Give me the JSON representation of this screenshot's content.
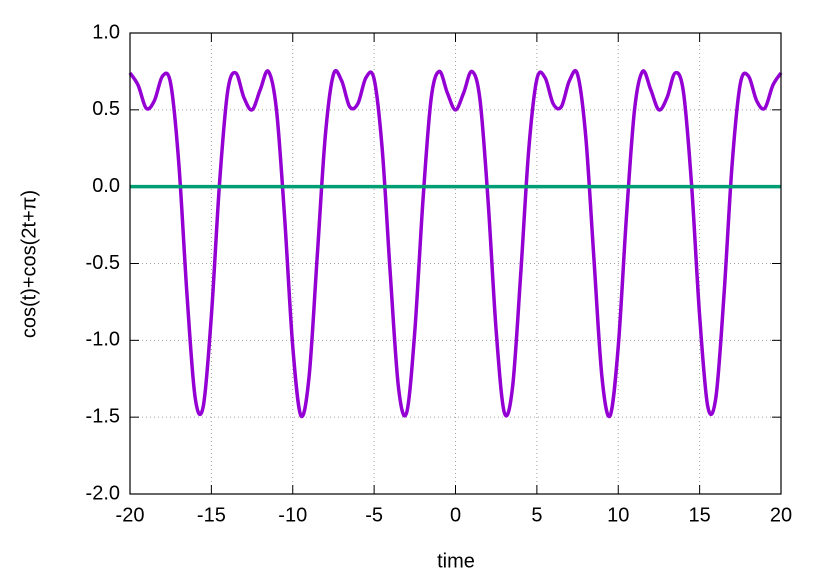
{
  "chart_data": {
    "type": "line",
    "xlabel": "time",
    "ylabel": "cos(t)+cos(2t+π)",
    "xlim": [
      -20,
      20
    ],
    "xticks": [
      -20,
      -15,
      -10,
      -5,
      0,
      5,
      10,
      15,
      20
    ],
    "ylim": [
      -2,
      1
    ],
    "yticks": [
      {
        "value": -2,
        "label": "-2.0"
      },
      {
        "value": -1.5,
        "label": "-1.5"
      },
      {
        "value": -1,
        "label": "-1.0"
      },
      {
        "value": -0.5,
        "label": "-0.5"
      },
      {
        "value": 0,
        "label": "0.0"
      },
      {
        "value": 0.5,
        "label": "0.5"
      },
      {
        "value": 1,
        "label": "1.0"
      }
    ],
    "grid": true,
    "series": [
      {
        "color": "#9400d3",
        "x": [
          -20,
          -19.5,
          -19,
          -18.5,
          -18,
          -17.5,
          -17,
          -16.5,
          -16,
          -15.5,
          -15,
          -14.5,
          -14,
          -13.5,
          -13,
          -12.5,
          -12,
          -11.5,
          -11,
          -10.5,
          -10,
          -9.5,
          -9,
          -8.5,
          -8,
          -7.5,
          -7,
          -6.5,
          -6,
          -5.5,
          -5,
          -4.5,
          -4,
          -3.5,
          -3,
          -2.5,
          -2,
          -1.5,
          -1,
          -0.5,
          0,
          0.5,
          1,
          1.5,
          2,
          2.5,
          3,
          3.5,
          4,
          4.5,
          5,
          5.5,
          6,
          6.5,
          7,
          7.5,
          8,
          8.5,
          9,
          9.5,
          10,
          10.5,
          11,
          11.5,
          12,
          12.5,
          13,
          13.5,
          14,
          14.5,
          15,
          15.5,
          16,
          16.5,
          17,
          17.5,
          18,
          18.5,
          19,
          19.5,
          20
        ],
        "values": [
          0.74,
          0.66,
          0.51,
          0.56,
          0.72,
          0.67,
          0.15,
          -0.7,
          -1.37,
          -1.43,
          -0.84,
          0.02,
          0.62,
          0.74,
          0.58,
          0.5,
          0.63,
          0.75,
          0.5,
          -0.2,
          -1.04,
          -1.49,
          -1.24,
          -0.46,
          0.33,
          0.73,
          0.69,
          0.52,
          0.54,
          0.71,
          0.7,
          0.24,
          -0.58,
          -1.31,
          -1.47,
          -0.94,
          -0.09,
          0.57,
          0.75,
          0.61,
          0.5,
          0.61,
          0.75,
          0.57,
          -0.09,
          -0.94,
          -1.47,
          -1.31,
          -0.58,
          0.24,
          0.7,
          0.71,
          0.54,
          0.52,
          0.69,
          0.73,
          0.33,
          -0.46,
          -1.24,
          -1.49,
          -1.04,
          -0.2,
          0.5,
          0.75,
          0.63,
          0.5,
          0.58,
          0.74,
          0.62,
          0.02,
          -0.84,
          -1.43,
          -1.37,
          -0.7,
          0.15,
          0.67,
          0.72,
          0.56,
          0.51,
          0.66,
          0.74
        ]
      },
      {
        "color": "#009e73",
        "x": [
          -20,
          20
        ],
        "values": [
          0,
          0
        ]
      }
    ]
  }
}
